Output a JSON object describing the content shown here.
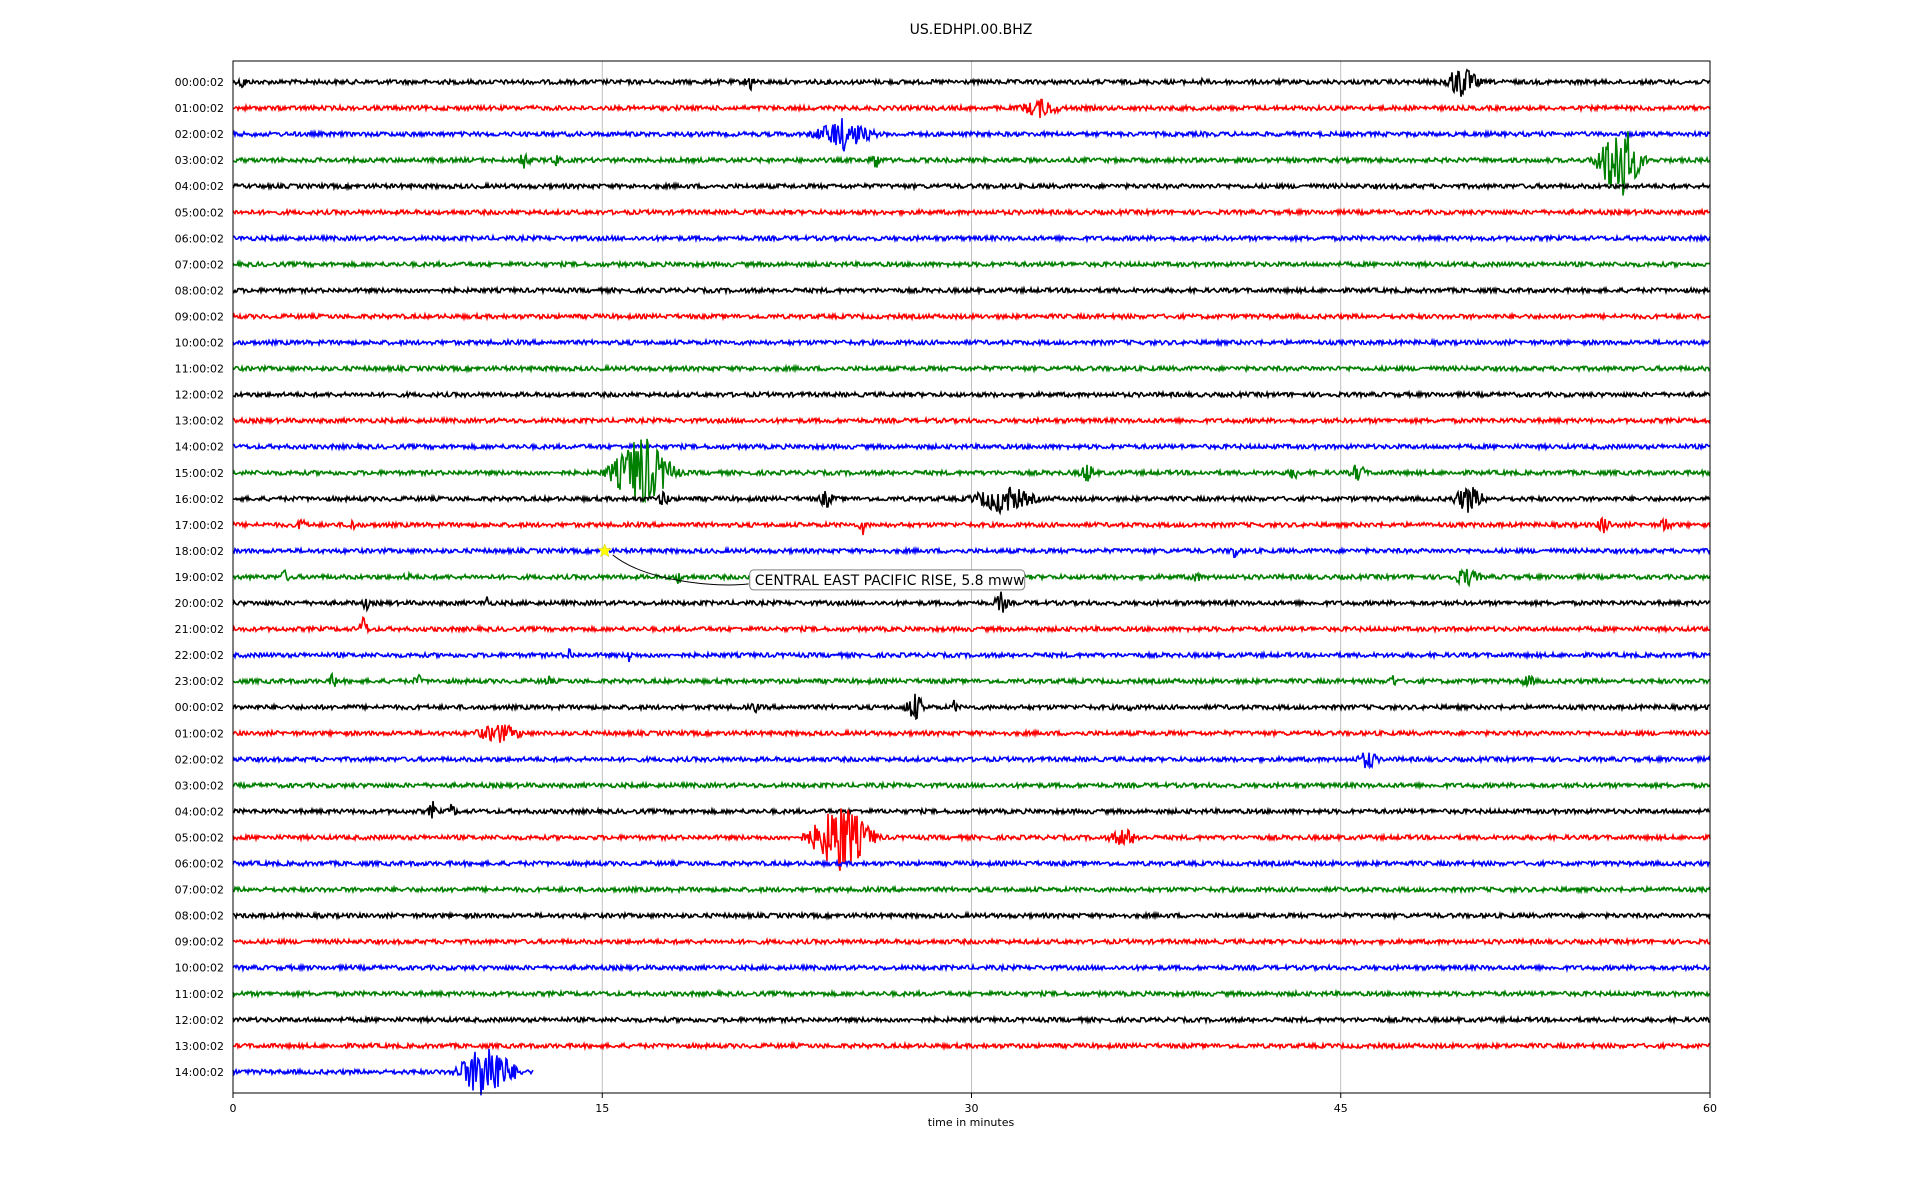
{
  "chart_data": {
    "type": "line",
    "title": "US.EDHPI.00.BHZ",
    "xlabel": "time in minutes",
    "ylabel": "",
    "xlim": [
      0,
      60
    ],
    "x_ticks": [
      0,
      15,
      30,
      45,
      60
    ],
    "grid": "vertical",
    "row_labels": [
      "00:00:02",
      "01:00:02",
      "02:00:02",
      "03:00:02",
      "04:00:02",
      "05:00:02",
      "06:00:02",
      "07:00:02",
      "08:00:02",
      "09:00:02",
      "10:00:02",
      "11:00:02",
      "12:00:02",
      "13:00:02",
      "14:00:02",
      "15:00:02",
      "16:00:02",
      "17:00:02",
      "18:00:02",
      "19:00:02",
      "20:00:02",
      "21:00:02",
      "22:00:02",
      "23:00:02",
      "00:00:02",
      "01:00:02",
      "02:00:02",
      "03:00:02",
      "04:00:02",
      "05:00:02",
      "06:00:02",
      "07:00:02",
      "08:00:02",
      "09:00:02",
      "10:00:02",
      "11:00:02",
      "12:00:02",
      "13:00:02",
      "14:00:02"
    ],
    "row_colors": [
      "#000000",
      "#ff0000",
      "#0000ff",
      "#008000"
    ],
    "last_row_end_minute": 12.2,
    "bursts": [
      {
        "row": 0,
        "minute": 0.4,
        "amp": 1.2,
        "dur": 0.3
      },
      {
        "row": 0,
        "minute": 21,
        "amp": 1.4,
        "dur": 0.4
      },
      {
        "row": 0,
        "minute": 39.3,
        "amp": 0.8,
        "dur": 0.2
      },
      {
        "row": 0,
        "minute": 49.9,
        "amp": 2.3,
        "dur": 1.2
      },
      {
        "row": 1,
        "minute": 32.8,
        "amp": 1.3,
        "dur": 1.6
      },
      {
        "row": 2,
        "minute": 24.8,
        "amp": 2.2,
        "dur": 2.0
      },
      {
        "row": 3,
        "minute": 11.8,
        "amp": 1.3,
        "dur": 0.5
      },
      {
        "row": 3,
        "minute": 13.1,
        "amp": 1.0,
        "dur": 0.4
      },
      {
        "row": 3,
        "minute": 26.1,
        "amp": 1.3,
        "dur": 0.5
      },
      {
        "row": 3,
        "minute": 56.3,
        "amp": 6.0,
        "dur": 1.4
      },
      {
        "row": 15,
        "minute": 16.6,
        "amp": 5.2,
        "dur": 2.0
      },
      {
        "row": 15,
        "minute": 34.7,
        "amp": 1.4,
        "dur": 0.6
      },
      {
        "row": 15,
        "minute": 43.1,
        "amp": 1.2,
        "dur": 0.4
      },
      {
        "row": 15,
        "minute": 45.7,
        "amp": 1.4,
        "dur": 0.6
      },
      {
        "row": 16,
        "minute": 17.5,
        "amp": 1.2,
        "dur": 0.5
      },
      {
        "row": 16,
        "minute": 24.1,
        "amp": 1.3,
        "dur": 0.6
      },
      {
        "row": 16,
        "minute": 31.3,
        "amp": 2.0,
        "dur": 2.2
      },
      {
        "row": 16,
        "minute": 50.2,
        "amp": 2.0,
        "dur": 1.1
      },
      {
        "row": 17,
        "minute": 2.8,
        "amp": 1.4,
        "dur": 0.3
      },
      {
        "row": 17,
        "minute": 4.8,
        "amp": 1.2,
        "dur": 0.3
      },
      {
        "row": 17,
        "minute": 25.6,
        "amp": 1.4,
        "dur": 0.3
      },
      {
        "row": 17,
        "minute": 55.7,
        "amp": 1.4,
        "dur": 0.5
      },
      {
        "row": 17,
        "minute": 58.2,
        "amp": 1.3,
        "dur": 0.4
      },
      {
        "row": 18,
        "minute": 40.7,
        "amp": 1.2,
        "dur": 0.4
      },
      {
        "row": 19,
        "minute": 2.1,
        "amp": 1.0,
        "dur": 0.4
      },
      {
        "row": 19,
        "minute": 7.1,
        "amp": 1.0,
        "dur": 0.3
      },
      {
        "row": 19,
        "minute": 18.1,
        "amp": 1.0,
        "dur": 0.4
      },
      {
        "row": 19,
        "minute": 39.1,
        "amp": 1.0,
        "dur": 0.4
      },
      {
        "row": 19,
        "minute": 50.1,
        "amp": 1.3,
        "dur": 1.1
      },
      {
        "row": 20,
        "minute": 5.4,
        "amp": 1.4,
        "dur": 0.2
      },
      {
        "row": 20,
        "minute": 10.3,
        "amp": 1.4,
        "dur": 0.2
      },
      {
        "row": 20,
        "minute": 31.2,
        "amp": 1.6,
        "dur": 0.5
      },
      {
        "row": 21,
        "minute": 5.3,
        "amp": 2.1,
        "dur": 0.3
      },
      {
        "row": 22,
        "minute": 13.7,
        "amp": 1.5,
        "dur": 0.2
      },
      {
        "row": 22,
        "minute": 16.1,
        "amp": 1.2,
        "dur": 0.2
      },
      {
        "row": 23,
        "minute": 4.1,
        "amp": 1.5,
        "dur": 0.3
      },
      {
        "row": 23,
        "minute": 7.5,
        "amp": 1.2,
        "dur": 0.3
      },
      {
        "row": 23,
        "minute": 12.8,
        "amp": 1.0,
        "dur": 0.3
      },
      {
        "row": 23,
        "minute": 47.1,
        "amp": 1.2,
        "dur": 0.3
      },
      {
        "row": 23,
        "minute": 52.6,
        "amp": 1.1,
        "dur": 0.5
      },
      {
        "row": 24,
        "minute": 21.2,
        "amp": 1.0,
        "dur": 0.3
      },
      {
        "row": 24,
        "minute": 27.7,
        "amp": 2.0,
        "dur": 0.7
      },
      {
        "row": 24,
        "minute": 29.3,
        "amp": 1.0,
        "dur": 0.3
      },
      {
        "row": 24,
        "minute": 36.4,
        "amp": 0.8,
        "dur": 0.3
      },
      {
        "row": 25,
        "minute": 10.8,
        "amp": 1.4,
        "dur": 1.8
      },
      {
        "row": 26,
        "minute": 46.1,
        "amp": 1.4,
        "dur": 0.8
      },
      {
        "row": 28,
        "minute": 8.1,
        "amp": 1.5,
        "dur": 0.3
      },
      {
        "row": 28,
        "minute": 8.9,
        "amp": 1.3,
        "dur": 0.3
      },
      {
        "row": 29,
        "minute": 24.7,
        "amp": 5.0,
        "dur": 2.0
      },
      {
        "row": 29,
        "minute": 36.2,
        "amp": 1.3,
        "dur": 1.2
      },
      {
        "row": 38,
        "minute": 10.3,
        "amp": 4.4,
        "dur": 1.8
      }
    ],
    "events": [
      {
        "row": 18,
        "minute": 15.1,
        "label": "CENTRAL EAST PACIFIC RISE, 5.8 mww",
        "marker_color": "#ffff00"
      }
    ]
  }
}
